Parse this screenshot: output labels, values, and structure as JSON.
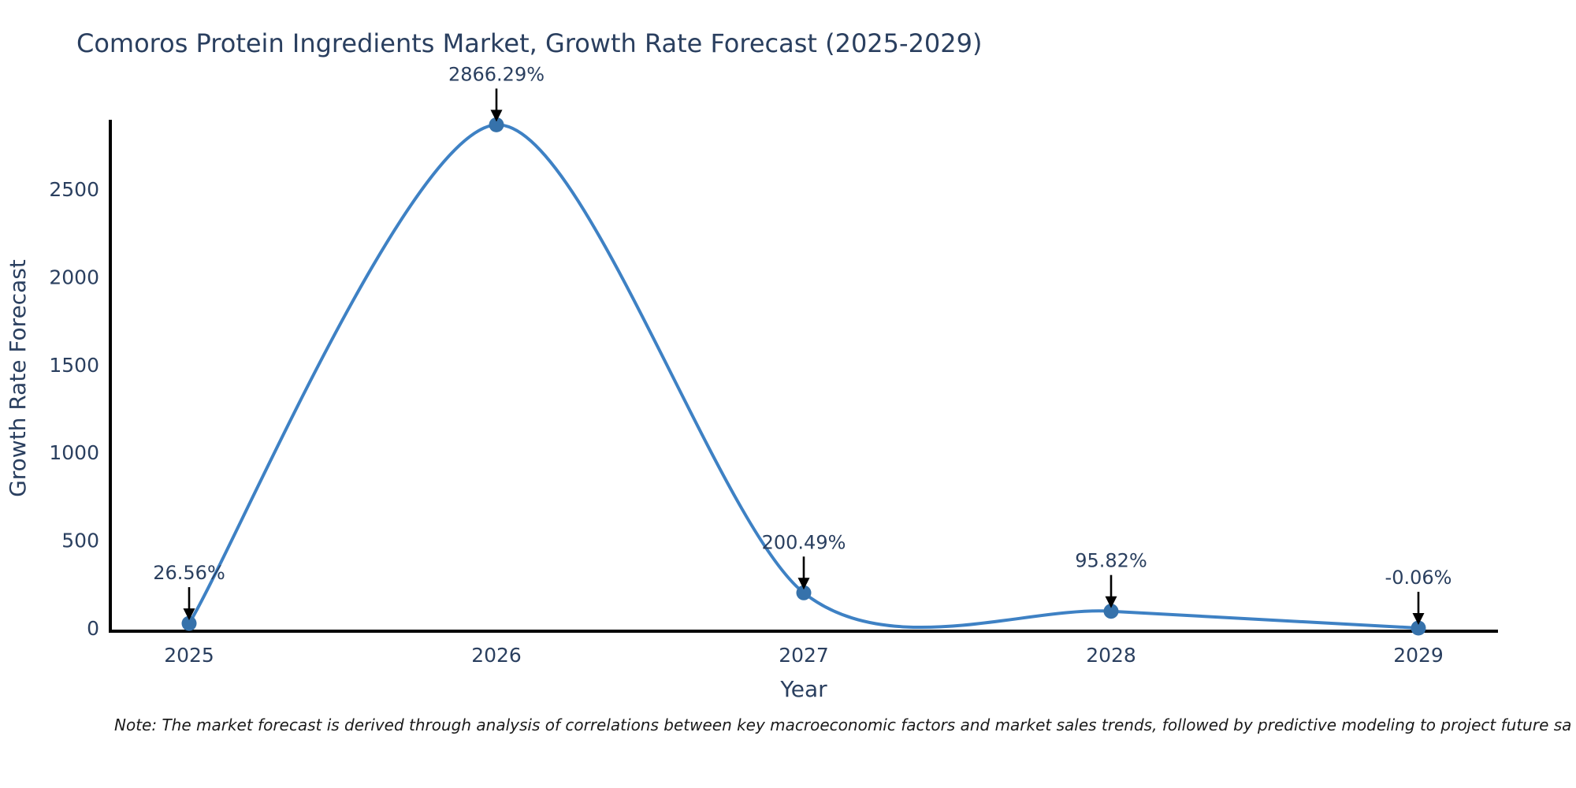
{
  "chart_data": {
    "type": "line",
    "title": "Comoros Protein Ingredients Market, Growth Rate Forecast (2025-2029)",
    "xlabel": "Year",
    "ylabel": "Growth Rate Forecast",
    "categories": [
      "2025",
      "2026",
      "2027",
      "2028",
      "2029"
    ],
    "series": [
      {
        "name": "Growth Rate Forecast",
        "values": [
          26.56,
          2866.29,
          200.49,
          95.82,
          -0.06
        ]
      }
    ],
    "point_labels": [
      "26.56%",
      "2866.29%",
      "200.49%",
      "95.82%",
      "-0.06%"
    ],
    "yticks": [
      0,
      500,
      1000,
      1500,
      2000,
      2500
    ],
    "ylim": [
      0,
      2895
    ],
    "grid": false,
    "legend_position": "none",
    "line_shape": "spline",
    "colors": {
      "line": "#3e81c4",
      "marker": "#3672ab",
      "axis": "#000000",
      "text": "#2a3f5f",
      "arrow": "#000000",
      "background": "#ffffff"
    }
  },
  "note": {
    "text": "Note: The market forecast is derived through analysis of correlations between key macroeconomic factors and market sales trends, followed by predictive modeling to project future sa"
  }
}
